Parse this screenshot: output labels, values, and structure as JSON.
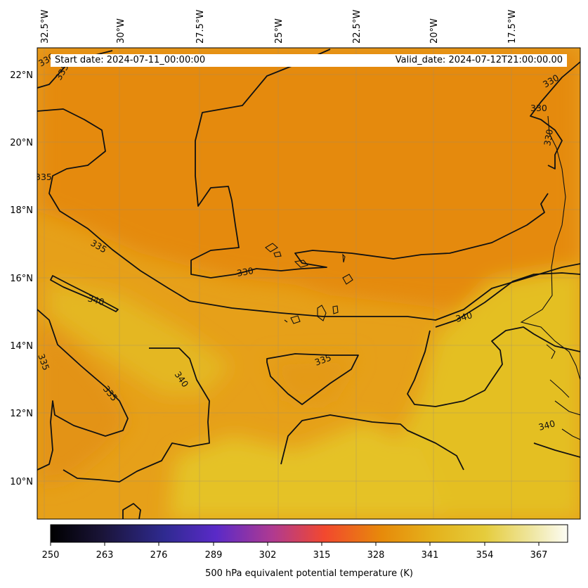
{
  "header": {
    "start_date": "Start date: 2024-07-11_00:00:00",
    "valid_date": "Valid_date: 2024-07-12T21:00:00.00"
  },
  "map": {
    "lon_labels": [
      "32.5°W",
      "30°W",
      "27.5°W",
      "25°W",
      "22.5°W",
      "20°W",
      "17.5°W"
    ],
    "lat_labels": [
      "22°N",
      "20°N",
      "18°N",
      "16°N",
      "14°N",
      "12°N",
      "10°N"
    ],
    "contour_labels": [
      "330",
      "330",
      "330",
      "330",
      "335",
      "335",
      "335",
      "335",
      "335",
      "335",
      "340",
      "340",
      "340",
      "340"
    ],
    "field_colors": {
      "low": "#e58a08",
      "mid": "#e7a31a",
      "high": "#e4c022"
    }
  },
  "colorbar": {
    "ticks": [
      "250",
      "263",
      "276",
      "289",
      "302",
      "315",
      "328",
      "341",
      "354",
      "367"
    ],
    "label": "500 hPa equivalent potential temperature (K)",
    "colormap": "CMRmap",
    "range": [
      250,
      374
    ]
  }
}
